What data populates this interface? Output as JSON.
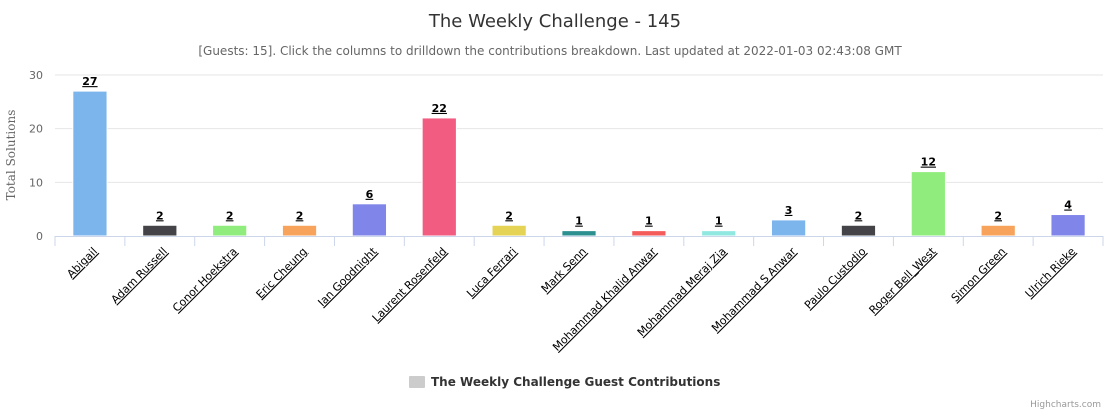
{
  "chart_data": {
    "type": "bar",
    "title": "The Weekly Challenge - 145",
    "subtitle": "[Guests: 15]. Click the columns to drilldown the contributions breakdown. Last updated at 2022-01-03 02:43:08 GMT",
    "xlabel": "",
    "ylabel": "Total Solutions",
    "ylim": [
      0,
      30
    ],
    "yticks": [
      0,
      10,
      20,
      30
    ],
    "grid": true,
    "legend_position": "bottom-center",
    "categories": [
      "Abigail",
      "Adam Russell",
      "Conor Hoekstra",
      "Eric Cheung",
      "Ian Goodnight",
      "Laurent Rosenfeld",
      "Luca Ferrari",
      "Mark Senn",
      "Mohammad Khalid Anwar",
      "Mohammad Meraj Zia",
      "Mohammad S Anwar",
      "Paulo Custodio",
      "Roger Bell_West",
      "Simon Green",
      "Ulrich Rieke"
    ],
    "series": [
      {
        "name": "The Weekly Challenge Guest Contributions",
        "values": [
          27,
          2,
          2,
          2,
          6,
          22,
          2,
          1,
          1,
          1,
          3,
          2,
          12,
          2,
          4
        ],
        "colors": [
          "#7cb5ec",
          "#434348",
          "#90ed7d",
          "#f7a35c",
          "#8085e9",
          "#f15c80",
          "#e4d354",
          "#2b908f",
          "#f45b5b",
          "#91e8e1",
          "#7cb5ec",
          "#434348",
          "#90ed7d",
          "#f7a35c",
          "#8085e9"
        ]
      }
    ]
  },
  "legend_color": "#cccccc",
  "credits": "Highcharts.com"
}
